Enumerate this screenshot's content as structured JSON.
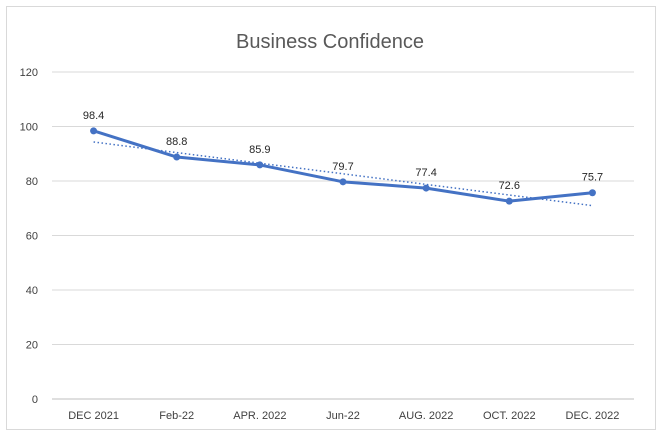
{
  "chart_data": {
    "type": "line",
    "title": "Business Confidence",
    "categories": [
      "DEC 2021",
      "Feb-22",
      "APR. 2022",
      "Jun-22",
      "AUG. 2022",
      "OCT. 2022",
      "DEC. 2022"
    ],
    "series": [
      {
        "values": [
          98.4,
          88.8,
          85.9,
          79.7,
          77.4,
          72.6,
          75.7
        ],
        "color": "#4472C4"
      }
    ],
    "trendline": {
      "type": "linear",
      "style": "dotted",
      "color": "#4472C4"
    },
    "ylim": [
      0,
      120
    ],
    "yticks": [
      0,
      20,
      40,
      60,
      80,
      100,
      120
    ],
    "grid": true,
    "data_labels": true
  }
}
